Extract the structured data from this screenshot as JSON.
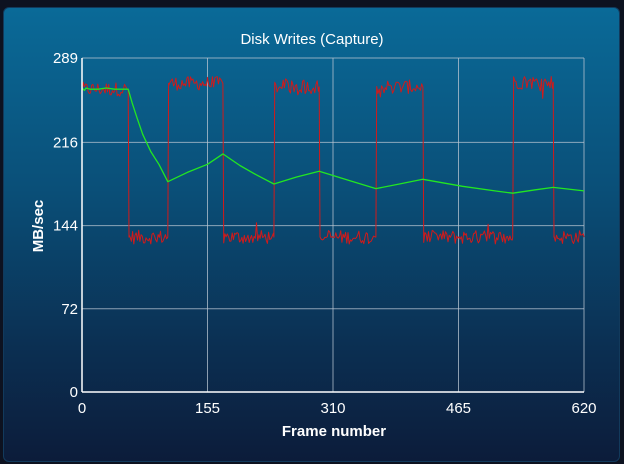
{
  "chart_data": {
    "type": "line",
    "title": "Disk Writes (Capture)",
    "xlabel": "Frame number",
    "ylabel": "MB/sec",
    "xlim": [
      0,
      620
    ],
    "ylim": [
      0,
      289
    ],
    "xticks": [
      "0",
      "155",
      "310",
      "465",
      "620"
    ],
    "yticks": [
      "0",
      "72",
      "144",
      "216",
      "289"
    ],
    "grid": true,
    "legend": "none",
    "colors": {
      "raw": "#d21a1a",
      "average": "#22e622",
      "grid": "#b9c6d2",
      "axis": "#ffffff"
    },
    "series": [
      {
        "id": "raw",
        "x": [
          0,
          57,
          58,
          106,
          107,
          174,
          175,
          237,
          238,
          293,
          294,
          363,
          364,
          421,
          422,
          532,
          533,
          582,
          583,
          620
        ],
        "y": [
          262,
          262,
          134,
          134,
          267,
          267,
          134,
          134,
          264,
          264,
          134,
          134,
          264,
          264,
          134,
          134,
          268,
          268,
          134,
          134
        ],
        "noise": 6
      },
      {
        "id": "average",
        "x": [
          0,
          3,
          5,
          10,
          20,
          30,
          40,
          57,
          62,
          68,
          75,
          85,
          95,
          106,
          130,
          155,
          174,
          195,
          215,
          237,
          265,
          293,
          330,
          363,
          392,
          421,
          470,
          510,
          532,
          560,
          582,
          620
        ],
        "y": [
          263,
          261,
          263,
          262,
          262,
          263,
          262,
          262,
          250,
          237,
          223,
          208,
          197,
          182,
          190,
          197,
          206,
          196,
          188,
          180,
          186,
          191,
          183,
          176,
          180,
          184,
          178,
          174,
          172,
          175,
          177,
          174
        ]
      }
    ]
  }
}
